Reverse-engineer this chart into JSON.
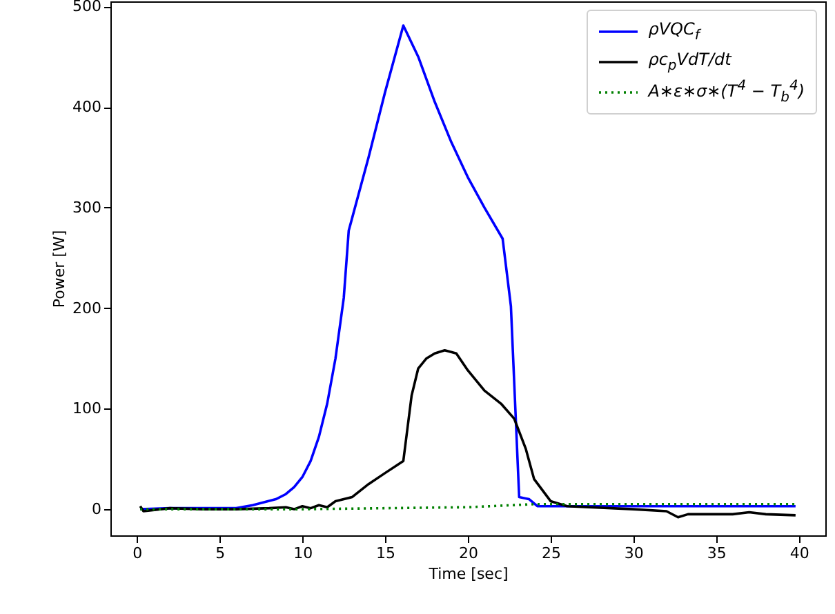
{
  "chart_data": {
    "type": "line",
    "xlabel": "Time [sec]",
    "ylabel": "Power [W]",
    "xlim": [
      -1.6,
      41.6
    ],
    "ylim": [
      -26,
      505
    ],
    "xticks": [
      0,
      5,
      10,
      15,
      20,
      25,
      30,
      35,
      40
    ],
    "yticks": [
      0,
      100,
      200,
      300,
      400,
      500
    ],
    "legend": "top right",
    "series": [
      {
        "name": "ρVQC$_{f}$",
        "color": "#0000ff",
        "x": [
          0.2,
          2,
          4,
          6,
          7,
          8.4,
          9,
          9.5,
          10,
          10.5,
          11,
          11.5,
          12,
          12.5,
          12.8,
          14,
          15,
          16.1,
          17,
          18,
          19,
          20,
          21,
          22.1,
          22.6,
          23.1,
          23.7,
          24.2,
          26,
          30,
          35,
          39.8
        ],
        "values": [
          0,
          1,
          1,
          1,
          4,
          10,
          15,
          22,
          32,
          48,
          72,
          105,
          150,
          210,
          277,
          350,
          415,
          481,
          450,
          405,
          365,
          330,
          300,
          269,
          202,
          12,
          10,
          3,
          3,
          3,
          3,
          3
        ]
      },
      {
        "name": "ρc$_{p}$VdT/dt",
        "color": "#000000",
        "x": [
          0.2,
          0.4,
          2,
          4,
          6,
          8,
          9,
          9.5,
          10,
          10.5,
          11,
          11.5,
          12,
          13,
          14,
          15,
          16.1,
          16.6,
          17,
          17.5,
          18,
          18.6,
          19.3,
          20,
          21,
          22,
          22.8,
          23.5,
          24,
          25,
          26,
          30,
          32,
          32.7,
          33.3,
          34,
          36,
          37,
          38,
          39.8
        ],
        "values": [
          3,
          -2,
          1,
          0,
          0,
          1,
          2,
          0,
          3,
          1,
          4,
          2,
          8,
          12,
          25,
          36,
          48,
          113,
          140,
          150,
          155,
          158,
          155,
          138,
          118,
          105,
          90,
          60,
          30,
          8,
          3,
          0,
          -2,
          -8,
          -5,
          -5,
          -5,
          -3,
          -5,
          -6
        ]
      },
      {
        "name": "A∗ε∗σ∗(T$^{4}$ − T$_{b}$$^{4}$)",
        "color": "#008000",
        "line_style": "dotted",
        "x": [
          0.2,
          10,
          15,
          20,
          24,
          25,
          30,
          39.8
        ],
        "values": [
          0,
          0,
          1,
          2,
          5,
          5,
          5,
          5
        ]
      }
    ]
  }
}
